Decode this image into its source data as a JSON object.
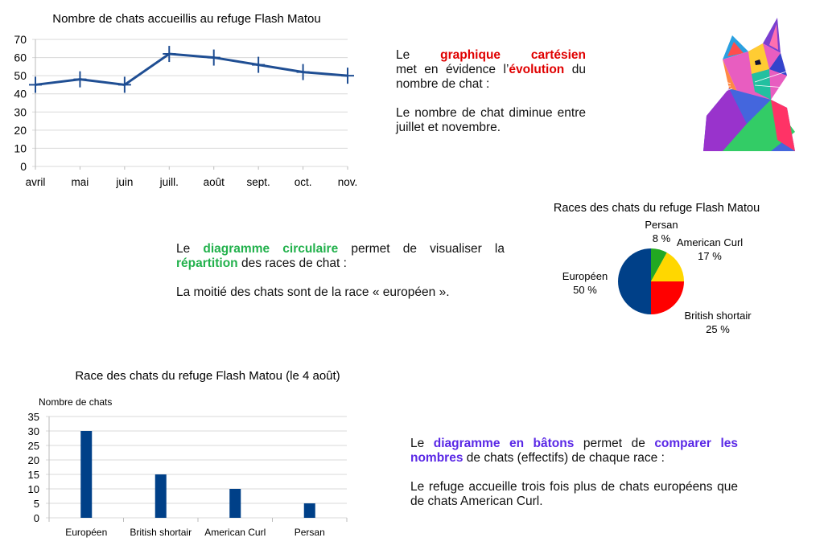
{
  "chart_data": [
    {
      "type": "line",
      "title": "Nombre de chats accueillis au refuge Flash Matou",
      "categories": [
        "avril",
        "mai",
        "juin",
        "juill.",
        "août",
        "sept.",
        "oct.",
        "nov."
      ],
      "series": [
        {
          "values": [
            45,
            48,
            45,
            62,
            60,
            56,
            52,
            50
          ]
        }
      ],
      "ylim": [
        0,
        70
      ],
      "yticks": [
        "0",
        "10",
        "20",
        "30",
        "40",
        "50",
        "60",
        "70"
      ],
      "grid": true,
      "marker": "cross",
      "color": "#1f4e93"
    },
    {
      "type": "pie",
      "title": "Races des chats du refuge Flash Matou",
      "slices": [
        {
          "label": "Persan",
          "value": 8,
          "text": "8 %",
          "color": "#22a822"
        },
        {
          "label": "American Curl",
          "value": 17,
          "text": "17 %",
          "color": "#ffd700"
        },
        {
          "label": "British shortair",
          "value": 25,
          "text": "25 %",
          "color": "#ff0000"
        },
        {
          "label": "Européen",
          "value": 50,
          "text": "50 %",
          "color": "#004088"
        }
      ]
    },
    {
      "type": "bar",
      "title": "Race des chats du refuge Flash Matou (le 4 août)",
      "ylabel": "Nombre de chats",
      "categories": [
        "Européen",
        "British shortair",
        "American Curl",
        "Persan"
      ],
      "values": [
        30,
        15,
        10,
        5
      ],
      "ylim": [
        0,
        35
      ],
      "yticks": [
        "0",
        "5",
        "10",
        "15",
        "20",
        "25",
        "30",
        "35"
      ],
      "grid": true,
      "color": "#004088"
    }
  ],
  "texts": {
    "line": {
      "p1": [
        "Le ",
        "graphique cartésien",
        " met en évidence l’",
        "évolution",
        " du nombre de chat :"
      ],
      "p2": "Le nombre de chat diminue entre juillet et novembre."
    },
    "pie": {
      "p1": [
        "Le ",
        "diagramme circulaire",
        " permet de visualiser la ",
        "répartition",
        " des races de chat :"
      ],
      "p2": "La moitié des chats sont de la race « européen »."
    },
    "bar": {
      "p1": [
        "Le ",
        "diagramme en bâtons",
        " permet de ",
        "comparer les nombres",
        " de chats (effectifs) de chaque race :"
      ],
      "p2": "Le refuge accueille trois fois plus de chats européens que de chats American Curl."
    }
  },
  "image": {
    "icon": "polygonal-cat-illustration"
  }
}
